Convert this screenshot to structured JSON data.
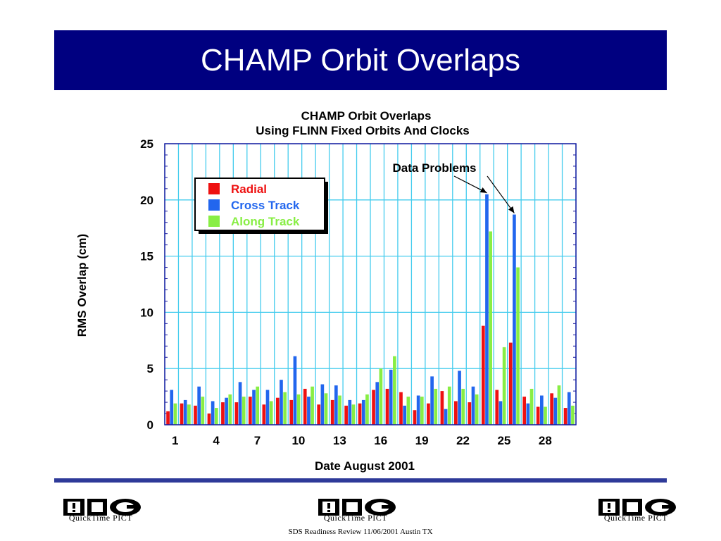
{
  "slide": {
    "title": "CHAMP Orbit Overlaps",
    "footer": "SDS Readiness Review 11/06/2001 Austin TX",
    "logo_caption": "QuickTime PICT",
    "banner_color": "#000080",
    "rule_color": "#2e3a99"
  },
  "chart_data": {
    "type": "bar",
    "title": "CHAMP Orbit Overlaps",
    "subtitle": "Using FLINN Fixed Orbits And Clocks",
    "xlabel": "Date August 2001",
    "ylabel": "RMS Overlap (cm)",
    "x_ticks": [
      1,
      4,
      7,
      10,
      13,
      16,
      19,
      22,
      25,
      28
    ],
    "y_ticks": [
      0,
      5,
      10,
      15,
      20,
      25
    ],
    "ylim": [
      0,
      25
    ],
    "xlim": [
      0.5,
      30.5
    ],
    "grid": true,
    "legend_position": "top-left",
    "annotation": {
      "text": "Data Problems",
      "targets": [
        24,
        26
      ]
    },
    "categories": [
      1,
      2,
      3,
      4,
      5,
      6,
      7,
      8,
      9,
      10,
      11,
      12,
      13,
      14,
      15,
      16,
      17,
      18,
      19,
      20,
      21,
      22,
      23,
      24,
      25,
      26,
      27,
      28,
      29,
      30
    ],
    "series": [
      {
        "name": "Radial",
        "color": "#ee1111",
        "values": [
          1.2,
          1.9,
          1.7,
          1.0,
          2.0,
          2.0,
          2.5,
          1.8,
          2.4,
          2.2,
          3.2,
          1.8,
          2.2,
          1.7,
          1.9,
          3.1,
          3.2,
          2.9,
          1.3,
          1.9,
          3.0,
          2.1,
          2.0,
          8.8,
          3.1,
          7.3,
          2.5,
          1.6,
          2.8,
          1.5
        ]
      },
      {
        "name": "Cross Track",
        "color": "#2266ee",
        "values": [
          3.1,
          2.2,
          3.4,
          2.1,
          2.4,
          3.8,
          3.1,
          3.1,
          4.0,
          6.1,
          2.5,
          3.6,
          3.5,
          2.2,
          2.2,
          3.8,
          4.9,
          1.7,
          2.6,
          4.3,
          1.4,
          4.8,
          3.4,
          20.5,
          2.1,
          18.7,
          1.9,
          2.6,
          2.4,
          2.9
        ]
      },
      {
        "name": "Along Track",
        "color": "#88ee44",
        "values": [
          1.9,
          1.8,
          2.5,
          1.5,
          2.7,
          2.5,
          3.4,
          2.1,
          2.9,
          2.7,
          3.4,
          2.8,
          2.6,
          1.8,
          2.7,
          5.0,
          6.1,
          2.5,
          2.5,
          3.2,
          3.4,
          3.2,
          2.7,
          17.2,
          6.9,
          14.0,
          3.2,
          1.6,
          3.5,
          1.7
        ]
      }
    ]
  }
}
